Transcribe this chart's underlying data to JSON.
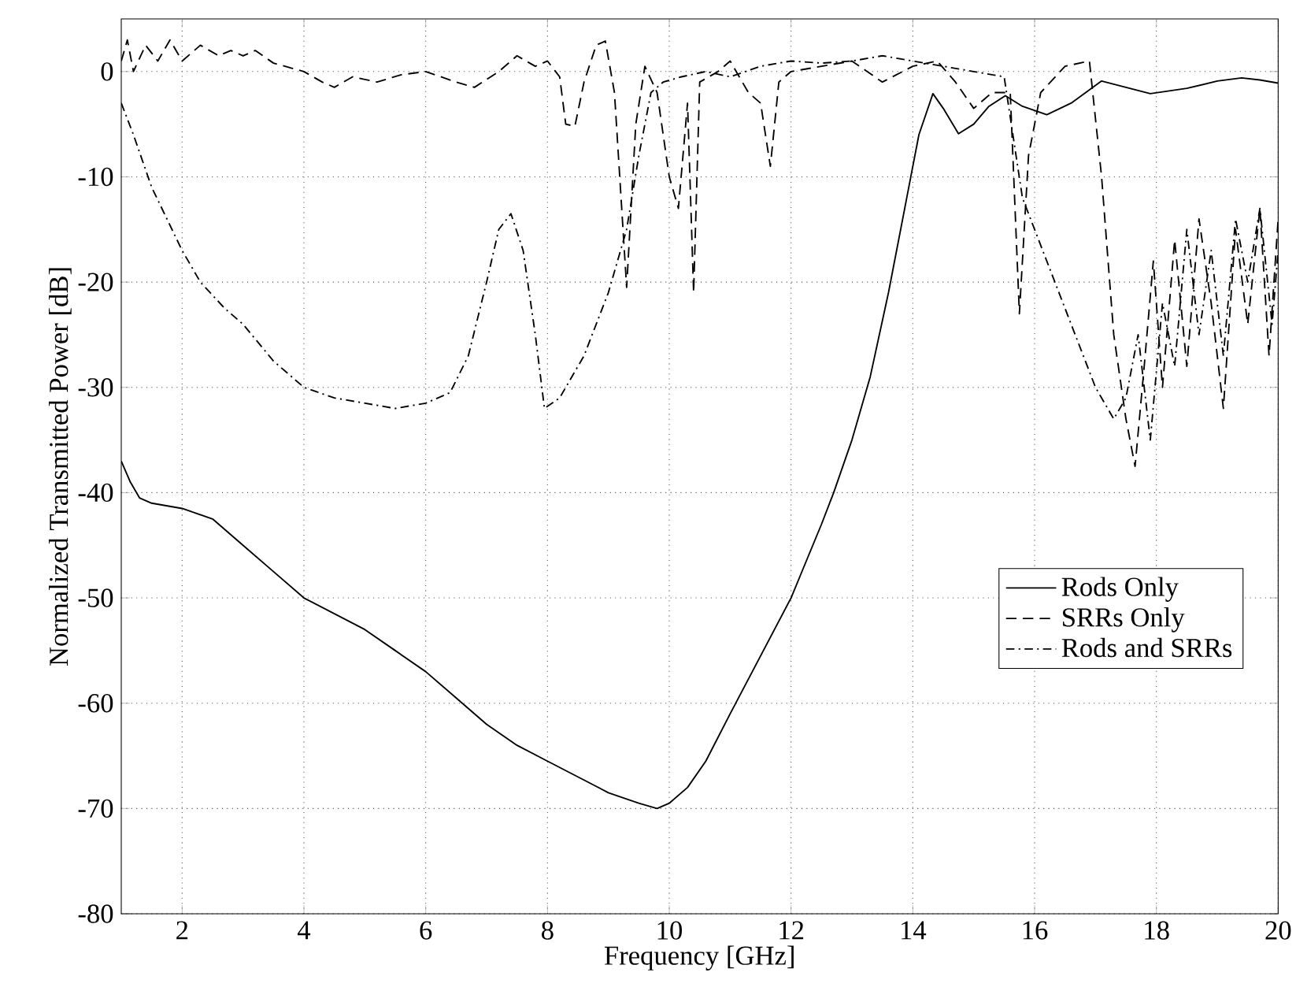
{
  "chart_data": {
    "type": "line",
    "xlabel": "Frequency [GHz]",
    "ylabel": "Normalized Transmitted Power [dB]",
    "xlim": [
      1,
      20
    ],
    "ylim": [
      -80,
      5
    ],
    "xticks": [
      2,
      4,
      6,
      8,
      10,
      12,
      14,
      16,
      18,
      20
    ],
    "yticks": [
      -80,
      -70,
      -60,
      -50,
      -40,
      -30,
      -20,
      -10,
      0
    ],
    "grid": true,
    "legend": "right",
    "marker": "none",
    "series": [
      {
        "name": "Rods Only",
        "color": "#000000",
        "line_style": "solid",
        "x": [
          1,
          1.15,
          1.3,
          1.5,
          2,
          2.5,
          3,
          3.5,
          4,
          4.5,
          5,
          5.5,
          6,
          6.5,
          7,
          7.5,
          8,
          8.5,
          9,
          9.5,
          9.8,
          10,
          10.3,
          10.6,
          11,
          11.5,
          12,
          12.5,
          12.7,
          13,
          13.3,
          13.6,
          13.9,
          14.1,
          14.33,
          14.5,
          14.75,
          15,
          15.25,
          15.52,
          15.8,
          16.2,
          16.6,
          17.1,
          17.5,
          17.9,
          18.5,
          19,
          19.4,
          19.7,
          20
        ],
        "values": [
          -37,
          -39,
          -40.5,
          -41,
          -41.5,
          -42.5,
          -45,
          -47.5,
          -50,
          -51.5,
          -53,
          -55,
          -57,
          -59.5,
          -62,
          -64,
          -65.5,
          -67,
          -68.5,
          -69.5,
          -70,
          -69.5,
          -68,
          -65.5,
          -61,
          -55.5,
          -50,
          -43,
          -40,
          -35,
          -29,
          -21,
          -12,
          -6,
          -2.1,
          -3.5,
          -5.9,
          -5,
          -3.3,
          -2.3,
          -3.3,
          -4.1,
          -3,
          -0.9,
          -1.5,
          -2.1,
          -1.6,
          -0.9,
          -0.6,
          -0.8,
          -1.1
        ]
      },
      {
        "name": "SRRs Only",
        "color": "#000000",
        "line_style": "dashed",
        "x": [
          1,
          1.1,
          1.2,
          1.4,
          1.6,
          1.8,
          2,
          2.3,
          2.6,
          2.8,
          3,
          3.2,
          3.5,
          4,
          4.3,
          4.5,
          4.8,
          5.2,
          5.6,
          6,
          6.5,
          6.8,
          7.2,
          7.5,
          7.8,
          8,
          8.2,
          8.3,
          8.45,
          8.6,
          8.8,
          8.95,
          9.1,
          9.3,
          9.45,
          9.6,
          9.8,
          10,
          10.15,
          10.3,
          10.4,
          10.5,
          10.8,
          11,
          11.3,
          11.5,
          11.66,
          11.8,
          12,
          12.5,
          13,
          13.5,
          14,
          14.4,
          14.7,
          15,
          15.3,
          15.6,
          15.75,
          15.9,
          16.1,
          16.5,
          16.9,
          17.1,
          17.3,
          17.5,
          17.65,
          17.8,
          17.95,
          18.1,
          18.3,
          18.5,
          18.7,
          18.9,
          19.1,
          19.3,
          19.5,
          19.7,
          19.85,
          20
        ],
        "values": [
          1,
          3,
          0,
          2.5,
          1,
          3,
          1,
          2.5,
          1.5,
          2,
          1.5,
          2,
          0.8,
          0,
          -1,
          -1.5,
          -0.5,
          -1,
          -0.3,
          0,
          -1,
          -1.5,
          0,
          1.5,
          0.5,
          1,
          -0.5,
          -5,
          -5.2,
          -1,
          2.5,
          2.9,
          -2,
          -20.5,
          -5,
          0.5,
          -2,
          -10,
          -13,
          -3,
          -21,
          -1,
          0,
          1,
          -2,
          -3,
          -9,
          -1,
          0,
          0.5,
          1,
          -1,
          0.5,
          1,
          -1,
          -3.5,
          -2,
          -2,
          -23,
          -8,
          -2,
          0.5,
          1,
          -10,
          -25,
          -33,
          -37.5,
          -28,
          -18,
          -30,
          -16,
          -28,
          -14,
          -22,
          -32,
          -15,
          -24,
          -13,
          -27,
          -14
        ]
      },
      {
        "name": "Rods and SRRs",
        "color": "#000000",
        "line_style": "dashdot",
        "x": [
          1,
          1.2,
          1.5,
          2,
          2.3,
          2.7,
          3,
          3.5,
          4,
          4.5,
          5,
          5.5,
          6,
          6.4,
          6.7,
          7,
          7.2,
          7.4,
          7.6,
          7.8,
          7.95,
          8.2,
          8.6,
          9,
          9.3,
          9.5,
          9.7,
          9.9,
          10.2,
          10.6,
          11,
          11.5,
          12,
          12.5,
          13,
          13.5,
          14,
          14.5,
          15,
          15.5,
          15.8,
          16.2,
          16.6,
          17,
          17.3,
          17.5,
          17.7,
          17.9,
          18.1,
          18.3,
          18.5,
          18.7,
          18.9,
          19.1,
          19.3,
          19.5,
          19.7,
          19.9,
          20
        ],
        "values": [
          -3,
          -6,
          -11,
          -17,
          -20,
          -22.5,
          -24,
          -27.5,
          -30,
          -31,
          -31.5,
          -32,
          -31.5,
          -30.5,
          -27,
          -20,
          -15,
          -13.5,
          -17,
          -25,
          -32,
          -31,
          -27,
          -21,
          -15,
          -8,
          -2,
          -1,
          -0.5,
          0,
          -0.5,
          0.5,
          1,
          0.8,
          1,
          1.5,
          1,
          0.5,
          0,
          -0.5,
          -12,
          -18,
          -24,
          -30,
          -33,
          -31,
          -25,
          -35,
          -22,
          -28,
          -15,
          -25,
          -17,
          -27,
          -14,
          -20,
          -13,
          -24,
          -17
        ]
      }
    ]
  }
}
